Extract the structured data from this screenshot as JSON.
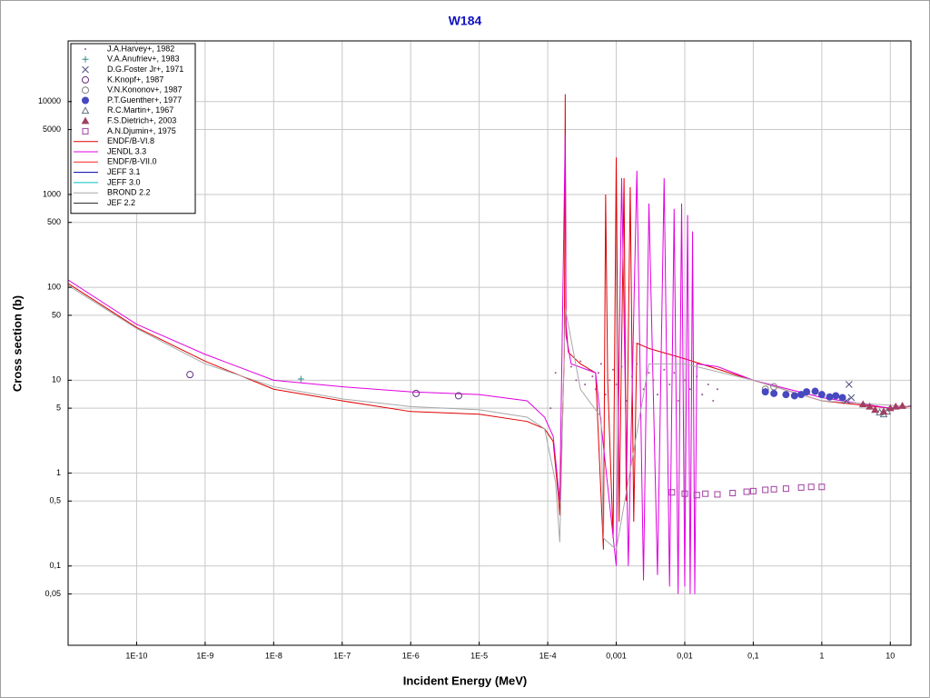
{
  "chart_data": {
    "type": "line",
    "title": "W184",
    "x_label": "Incident Energy (MeV)",
    "y_label": "Cross section (b)",
    "log_x": true,
    "log_y": true,
    "grid": true,
    "legend": "upper left",
    "title_color": "#1010c0",
    "xlim": [
      1e-11,
      20
    ],
    "ylim": [
      0.014,
      45000
    ],
    "xticks": [
      {
        "value": 1e-10,
        "label": "1E-10"
      },
      {
        "value": 1e-09,
        "label": "1E-9"
      },
      {
        "value": 1e-08,
        "label": "1E-8"
      },
      {
        "value": 1e-07,
        "label": "1E-7"
      },
      {
        "value": 1e-06,
        "label": "1E-6"
      },
      {
        "value": 1e-05,
        "label": "1E-5"
      },
      {
        "value": 0.0001,
        "label": "1E-4"
      },
      {
        "value": 0.001,
        "label": "0,001"
      },
      {
        "value": 0.01,
        "label": "0,01"
      },
      {
        "value": 0.1,
        "label": "0,1"
      },
      1,
      10
    ],
    "yticks": [
      {
        "value": 0.05,
        "label": "0,05"
      },
      {
        "value": 0.1,
        "label": "0,1"
      },
      {
        "value": 0.5,
        "label": "0,5"
      },
      1,
      5,
      10,
      50,
      100,
      500,
      1000,
      5000,
      10000
    ],
    "series": [
      {
        "name": "J.A.Harvey+, 1982",
        "type": "scatter",
        "marker": "dot",
        "color": "#9a4f9a",
        "x": [
          0.00011,
          0.00013,
          0.00022,
          0.00026,
          0.0003,
          0.00035,
          0.0004,
          0.00045,
          0.0005,
          0.00055,
          0.0006,
          0.0007,
          0.0008,
          0.0009,
          0.001,
          0.0012,
          0.0014,
          0.0017,
          0.002,
          0.0025,
          0.003,
          0.0035,
          0.004,
          0.005,
          0.006,
          0.007,
          0.008,
          0.01,
          0.012,
          0.015,
          0.018,
          0.022,
          0.026,
          0.03
        ],
        "values": [
          5,
          12,
          14,
          10,
          16,
          9,
          13,
          11,
          8,
          12,
          15,
          7,
          10,
          13,
          9,
          14,
          6,
          11,
          15,
          8,
          12,
          10,
          7,
          13,
          9,
          12,
          6,
          10,
          8,
          11,
          7,
          9,
          6,
          8
        ]
      },
      {
        "name": "V.A.Anufriev+, 1983",
        "type": "scatter",
        "marker": "plus",
        "color": "#2e8b8b",
        "x": [
          2.5e-08
        ],
        "values": [
          10.3
        ]
      },
      {
        "name": "D.G.Foster Jr+, 1971",
        "type": "scatter",
        "marker": "cross",
        "color": "#505080",
        "x": [
          2.3,
          2.5,
          2.7
        ],
        "values": [
          6,
          9,
          6.5
        ]
      },
      {
        "name": "K.Knopf+, 1987",
        "type": "scatter",
        "marker": "circle",
        "color": "#603080",
        "x": [
          6e-10,
          1.2e-06,
          5e-06
        ],
        "values": [
          11.5,
          7.2,
          6.8
        ]
      },
      {
        "name": "V.N.Kononov+, 1987",
        "type": "scatter",
        "marker": "circle",
        "color": "#808080",
        "x": [
          0.15,
          0.2
        ],
        "values": [
          8,
          8.5
        ]
      },
      {
        "name": "P.T.Guenther+, 1977",
        "type": "scatter",
        "marker": "filled-circle",
        "color": "#4848c0",
        "x": [
          0.15,
          0.2,
          0.3,
          0.4,
          0.5,
          0.6,
          0.8,
          1.0,
          1.3,
          1.6,
          2.0
        ],
        "values": [
          7.5,
          7.2,
          7,
          6.8,
          7,
          7.5,
          7.6,
          7,
          6.6,
          6.8,
          6.5
        ]
      },
      {
        "name": "R.C.Martin+, 1967",
        "type": "scatter",
        "marker": "triangle",
        "color": "#607080",
        "x": [
          7,
          8,
          9
        ],
        "values": [
          4.5,
          4.3,
          4.6
        ]
      },
      {
        "name": "F.S.Dietrich+, 2003",
        "type": "scatter",
        "marker": "filled-triangle",
        "color": "#a04060",
        "x": [
          4,
          5,
          6,
          8,
          10,
          12,
          15
        ],
        "values": [
          5.5,
          5.2,
          4.8,
          4.6,
          5,
          5.2,
          5.3
        ]
      },
      {
        "name": "A.N.Djumin+, 1975",
        "type": "scatter",
        "marker": "square",
        "color": "#a040a0",
        "x": [
          0.0065,
          0.01,
          0.015,
          0.02,
          0.03,
          0.05,
          0.08,
          0.1,
          0.15,
          0.2,
          0.3,
          0.5,
          0.7,
          1.0
        ],
        "values": [
          0.62,
          0.6,
          0.58,
          0.6,
          0.59,
          0.61,
          0.63,
          0.64,
          0.66,
          0.67,
          0.68,
          0.7,
          0.71,
          0.71
        ]
      },
      {
        "name": "ENDF/B-VI.8",
        "type": "line",
        "color": "#e00000",
        "x": [
          1e-11,
          1e-10,
          1e-09,
          1e-08,
          1e-07,
          1e-06,
          1e-05,
          5e-05,
          9e-05,
          0.00012,
          0.000145,
          0.00015,
          0.000175,
          0.00018,
          0.000185,
          0.0002,
          0.0003,
          0.0005,
          0.00065,
          0.0007,
          0.00075,
          0.0009,
          0.001,
          0.0011,
          0.0013,
          0.0014,
          0.0016,
          0.0018,
          0.002,
          0.003,
          0.01,
          0.1,
          1,
          10,
          20
        ],
        "values": [
          110,
          37,
          16,
          8,
          6,
          4.6,
          4.3,
          3.6,
          3,
          2.2,
          0.5,
          0.35,
          20,
          12000,
          40,
          20,
          15,
          12,
          0.15,
          1000,
          10,
          0.2,
          2500,
          0.3,
          1500,
          0.5,
          1200,
          0.3,
          25,
          22,
          17,
          10,
          6,
          5,
          5.2
        ]
      },
      {
        "name": "JENDL 3.3",
        "type": "line",
        "color": "#e000e0",
        "x": [
          1e-11,
          1e-10,
          1e-09,
          1e-08,
          1e-07,
          1e-06,
          1e-05,
          5e-05,
          9e-05,
          0.00012,
          0.00015,
          0.00018,
          0.000185,
          0.00022,
          0.0005,
          0.001,
          0.0012,
          0.0015,
          0.002,
          0.0025,
          0.003,
          0.004,
          0.005,
          0.006,
          0.007,
          0.008,
          0.009,
          0.01,
          0.011,
          0.012,
          0.013,
          0.014,
          0.015,
          0.03,
          0.1,
          1,
          10,
          20
        ],
        "values": [
          120,
          40,
          19,
          10,
          8.5,
          7.5,
          7,
          6,
          4,
          2.5,
          0.5,
          4500,
          30,
          15,
          12,
          0.1,
          1500,
          0.1,
          1800,
          0.07,
          800,
          0.08,
          1500,
          0.06,
          700,
          0.05,
          800,
          0.06,
          600,
          0.05,
          400,
          0.05,
          15,
          14,
          10,
          6.5,
          5,
          5.3
        ]
      },
      {
        "name": "ENDF/B-VII.0",
        "type": "line",
        "color": "#ff2020"
      },
      {
        "name": "JEFF 3.1",
        "type": "line",
        "color": "#0000a0"
      },
      {
        "name": "JEFF 3.0",
        "type": "line",
        "color": "#00c0c0"
      },
      {
        "name": "BROND 2.2",
        "type": "line",
        "color": "#a8a8a8",
        "x": [
          1e-11,
          1e-10,
          1e-09,
          1e-08,
          1e-07,
          1e-06,
          1e-05,
          5e-05,
          9e-05,
          0.00013,
          0.00015,
          0.00018,
          0.0003,
          0.0006,
          0.00065,
          0.001,
          0.003,
          0.01,
          0.1,
          1,
          20
        ],
        "values": [
          105,
          36,
          15,
          8.5,
          6.3,
          5.2,
          4.8,
          4,
          3,
          0.8,
          0.18,
          60,
          8,
          4,
          0.2,
          0.15,
          15,
          15,
          10,
          6,
          5.2
        ]
      },
      {
        "name": "JEF 2.2",
        "type": "line",
        "color": "#303030"
      }
    ]
  }
}
